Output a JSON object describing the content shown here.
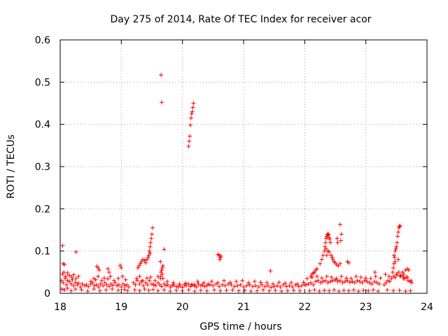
{
  "chart_data": {
    "type": "scatter",
    "title": "Day 275 of 2014, Rate Of TEC Index for receiver acor",
    "xlabel": "GPS time / hours",
    "ylabel": "ROTI / TECUs",
    "xlim": [
      18,
      24
    ],
    "ylim": [
      0,
      0.6
    ],
    "xticks": [
      18,
      19,
      20,
      21,
      22,
      23,
      24
    ],
    "yticks": [
      0,
      0.1,
      0.2,
      0.3,
      0.4,
      0.5,
      0.6
    ],
    "xtick_labels": [
      "18",
      "19",
      "20",
      "21",
      "22",
      "23",
      "24"
    ],
    "ytick_labels": [
      "0",
      "0.1",
      "0.2",
      "0.3",
      "0.4",
      "0.5",
      "0.6"
    ],
    "grid": true,
    "marker": "+",
    "color": "#ff0000",
    "series": [
      {
        "name": "ROTI",
        "x": [
          18.02,
          18.05,
          18.08,
          18.1,
          18.12,
          18.15,
          18.18,
          18.2,
          18.22,
          18.25,
          18.28,
          18.3,
          18.33,
          18.36,
          18.4,
          18.43,
          18.46,
          18.5,
          18.53,
          18.56,
          18.6,
          18.63,
          18.66,
          18.7,
          18.73,
          18.76,
          18.8,
          18.83,
          18.86,
          18.9,
          18.93,
          18.96,
          19.0,
          19.03,
          19.06,
          19.09,
          19.12,
          18.04,
          18.06,
          18.09,
          18.12,
          18.15,
          18.19,
          18.22,
          18.26,
          18.3,
          18.5,
          18.55,
          18.58,
          18.62,
          18.68,
          18.72,
          18.78,
          18.82,
          18.88,
          18.95,
          19.02,
          19.07,
          18.03,
          18.07,
          18.12,
          18.18,
          18.25,
          18.35,
          18.45,
          18.55,
          18.65,
          18.75,
          18.85,
          18.95,
          19.05,
          19.1,
          18.04,
          18.26,
          18.6,
          18.62,
          18.64,
          18.8,
          18.78,
          18.98,
          19.0,
          18.05,
          18.07,
          19.2,
          19.23,
          19.26,
          19.3,
          19.33,
          19.36,
          19.4,
          19.43,
          19.46,
          19.5,
          19.53,
          19.56,
          19.6,
          19.63,
          19.66,
          19.7,
          19.73,
          19.76,
          19.8,
          19.83,
          19.86,
          19.9,
          19.93,
          19.96,
          20.0,
          20.03,
          20.06,
          20.1,
          20.13,
          20.16,
          20.2,
          20.23,
          20.26,
          20.3,
          20.33,
          20.36,
          20.4,
          19.25,
          19.3,
          19.35,
          19.42,
          19.48,
          19.55,
          19.6,
          19.68,
          19.75,
          19.85,
          19.95,
          20.05,
          20.15,
          20.25,
          20.35,
          20.42,
          19.22,
          19.3,
          19.38,
          19.45,
          19.52,
          19.6,
          19.7,
          19.8,
          19.9,
          20.0,
          20.1,
          20.2,
          20.3,
          20.4,
          19.27,
          19.29,
          19.31,
          19.33,
          19.35,
          19.38,
          19.4,
          19.42,
          19.44,
          19.45,
          19.46,
          19.47,
          19.48,
          19.49,
          19.5,
          19.51,
          19.47,
          19.64,
          19.65,
          19.66,
          19.67,
          19.68,
          19.67,
          19.7,
          19.65,
          19.66,
          19.64,
          19.64,
          20.1,
          20.11,
          20.12,
          20.13,
          20.14,
          20.15,
          20.16,
          20.17,
          20.18,
          20.19,
          20.6,
          20.62,
          20.61,
          20.63,
          20.58,
          20.45,
          20.5,
          20.55,
          20.6,
          20.65,
          20.7,
          20.75,
          20.8,
          20.85,
          20.9,
          20.95,
          21.0,
          21.05,
          21.1,
          21.15,
          21.2,
          21.25,
          21.3,
          21.35,
          21.4,
          21.45,
          21.5,
          21.55,
          21.6,
          21.65,
          21.7,
          21.75,
          21.8,
          21.85,
          21.9,
          21.95,
          22.0,
          20.48,
          20.58,
          20.68,
          20.78,
          20.88,
          20.98,
          21.08,
          21.18,
          21.28,
          21.38,
          21.48,
          21.58,
          21.68,
          21.78,
          21.88,
          21.98,
          20.52,
          20.62,
          20.72,
          20.82,
          20.92,
          21.02,
          21.12,
          21.22,
          21.32,
          21.42,
          21.52,
          21.62,
          21.72,
          21.82,
          21.92,
          21.44,
          22.02,
          22.06,
          22.1,
          22.14,
          22.18,
          22.22,
          22.26,
          22.3,
          22.34,
          22.38,
          22.42,
          22.46,
          22.5,
          22.54,
          22.58,
          22.62,
          22.66,
          22.7,
          22.74,
          22.78,
          22.82,
          22.86,
          22.9,
          22.94,
          22.98,
          23.02,
          23.06,
          23.1,
          23.14,
          23.18,
          23.22,
          22.04,
          22.12,
          22.2,
          22.28,
          22.36,
          22.44,
          22.52,
          22.6,
          22.68,
          22.76,
          22.84,
          22.92,
          23.0,
          23.08,
          23.16,
          23.24,
          22.08,
          22.16,
          22.24,
          22.32,
          22.4,
          22.48,
          22.56,
          22.64,
          22.72,
          22.8,
          22.88,
          22.96,
          23.04,
          23.12,
          23.2,
          22.1,
          22.12,
          22.14,
          22.16,
          22.18,
          22.2,
          22.25,
          22.28,
          22.3,
          22.32,
          22.33,
          22.34,
          22.35,
          22.36,
          22.37,
          22.38,
          22.39,
          22.4,
          22.41,
          22.42,
          22.38,
          22.36,
          22.35,
          22.4,
          22.43,
          22.45,
          22.46,
          22.48,
          22.5,
          22.52,
          22.55,
          22.54,
          22.53,
          22.58,
          22.6,
          22.59,
          22.58,
          22.7,
          22.72,
          23.15,
          23.3,
          23.33,
          23.36,
          23.39,
          23.42,
          23.45,
          23.48,
          23.51,
          23.54,
          23.57,
          23.6,
          23.63,
          23.66,
          23.69,
          23.72,
          23.75,
          23.32,
          23.38,
          23.44,
          23.5,
          23.56,
          23.62,
          23.68,
          23.74,
          23.35,
          23.45,
          23.55,
          23.65,
          23.73,
          23.45,
          23.46,
          23.47,
          23.48,
          23.49,
          23.5,
          23.51,
          23.52,
          23.53,
          23.54,
          23.55,
          23.56,
          23.53,
          23.48,
          23.46,
          23.65,
          23.68,
          23.7,
          23.6,
          23.62
        ],
        "y": [
          0.03,
          0.025,
          0.035,
          0.02,
          0.03,
          0.028,
          0.022,
          0.032,
          0.018,
          0.026,
          0.02,
          0.024,
          0.015,
          0.022,
          0.018,
          0.02,
          0.016,
          0.022,
          0.025,
          0.018,
          0.02,
          0.015,
          0.022,
          0.018,
          0.025,
          0.02,
          0.016,
          0.022,
          0.019,
          0.025,
          0.018,
          0.02,
          0.015,
          0.022,
          0.018,
          0.02,
          0.015,
          0.045,
          0.05,
          0.04,
          0.048,
          0.042,
          0.038,
          0.044,
          0.035,
          0.04,
          0.028,
          0.035,
          0.032,
          0.04,
          0.03,
          0.036,
          0.034,
          0.04,
          0.03,
          0.035,
          0.04,
          0.032,
          0.01,
          0.008,
          0.012,
          0.006,
          0.01,
          0.008,
          0.005,
          0.01,
          0.006,
          0.008,
          0.01,
          0.007,
          0.009,
          0.006,
          0.113,
          0.098,
          0.064,
          0.06,
          0.055,
          0.05,
          0.058,
          0.066,
          0.06,
          0.07,
          0.068,
          0.025,
          0.02,
          0.03,
          0.022,
          0.028,
          0.018,
          0.025,
          0.02,
          0.03,
          0.022,
          0.02,
          0.018,
          0.025,
          0.02,
          0.016,
          0.022,
          0.018,
          0.02,
          0.015,
          0.018,
          0.02,
          0.016,
          0.015,
          0.018,
          0.014,
          0.02,
          0.018,
          0.022,
          0.016,
          0.02,
          0.018,
          0.015,
          0.022,
          0.018,
          0.02,
          0.016,
          0.018,
          0.035,
          0.04,
          0.03,
          0.036,
          0.038,
          0.03,
          0.04,
          0.035,
          0.028,
          0.025,
          0.022,
          0.024,
          0.02,
          0.028,
          0.025,
          0.022,
          0.008,
          0.006,
          0.01,
          0.007,
          0.009,
          0.006,
          0.008,
          0.005,
          0.007,
          0.006,
          0.008,
          0.005,
          0.007,
          0.006,
          0.06,
          0.065,
          0.07,
          0.075,
          0.08,
          0.078,
          0.072,
          0.08,
          0.085,
          0.09,
          0.1,
          0.11,
          0.12,
          0.13,
          0.14,
          0.155,
          0.095,
          0.04,
          0.05,
          0.055,
          0.06,
          0.065,
          0.045,
          0.104,
          0.517,
          0.452,
          0.075,
          0.035,
          0.348,
          0.36,
          0.372,
          0.398,
          0.415,
          0.425,
          0.43,
          0.44,
          0.45,
          0.02,
          0.09,
          0.085,
          0.08,
          0.088,
          0.092,
          0.02,
          0.018,
          0.022,
          0.016,
          0.02,
          0.018,
          0.022,
          0.02,
          0.016,
          0.018,
          0.02,
          0.015,
          0.018,
          0.02,
          0.016,
          0.018,
          0.015,
          0.02,
          0.016,
          0.018,
          0.014,
          0.016,
          0.018,
          0.015,
          0.02,
          0.016,
          0.018,
          0.015,
          0.02,
          0.016,
          0.018,
          0.02,
          0.028,
          0.025,
          0.03,
          0.026,
          0.028,
          0.03,
          0.025,
          0.028,
          0.026,
          0.025,
          0.022,
          0.026,
          0.024,
          0.025,
          0.022,
          0.026,
          0.008,
          0.006,
          0.007,
          0.008,
          0.006,
          0.007,
          0.005,
          0.006,
          0.008,
          0.006,
          0.007,
          0.005,
          0.006,
          0.007,
          0.006,
          0.053,
          0.02,
          0.022,
          0.025,
          0.02,
          0.028,
          0.03,
          0.025,
          0.028,
          0.03,
          0.025,
          0.028,
          0.03,
          0.032,
          0.028,
          0.03,
          0.025,
          0.028,
          0.03,
          0.026,
          0.028,
          0.025,
          0.03,
          0.028,
          0.025,
          0.03,
          0.028,
          0.025,
          0.022,
          0.028,
          0.025,
          0.022,
          0.035,
          0.038,
          0.04,
          0.036,
          0.04,
          0.038,
          0.035,
          0.04,
          0.036,
          0.035,
          0.04,
          0.038,
          0.036,
          0.035,
          0.04,
          0.036,
          0.006,
          0.008,
          0.005,
          0.007,
          0.006,
          0.008,
          0.005,
          0.007,
          0.006,
          0.008,
          0.005,
          0.007,
          0.006,
          0.008,
          0.005,
          0.04,
          0.045,
          0.048,
          0.05,
          0.055,
          0.058,
          0.07,
          0.08,
          0.09,
          0.1,
          0.11,
          0.12,
          0.13,
          0.135,
          0.14,
          0.138,
          0.14,
          0.132,
          0.128,
          0.12,
          0.1,
          0.09,
          0.105,
          0.098,
          0.09,
          0.085,
          0.08,
          0.075,
          0.072,
          0.068,
          0.065,
          0.12,
          0.13,
          0.163,
          0.14,
          0.125,
          0.07,
          0.075,
          0.072,
          0.05,
          0.02,
          0.025,
          0.03,
          0.028,
          0.035,
          0.04,
          0.038,
          0.045,
          0.05,
          0.042,
          0.04,
          0.035,
          0.038,
          0.03,
          0.028,
          0.025,
          0.045,
          0.04,
          0.05,
          0.045,
          0.04,
          0.035,
          0.038,
          0.03,
          0.008,
          0.006,
          0.007,
          0.005,
          0.006,
          0.06,
          0.07,
          0.085,
          0.1,
          0.105,
          0.11,
          0.12,
          0.135,
          0.145,
          0.155,
          0.158,
          0.16,
          0.08,
          0.075,
          0.09,
          0.055,
          0.058,
          0.055,
          0.05,
          0.045
        ]
      }
    ]
  }
}
